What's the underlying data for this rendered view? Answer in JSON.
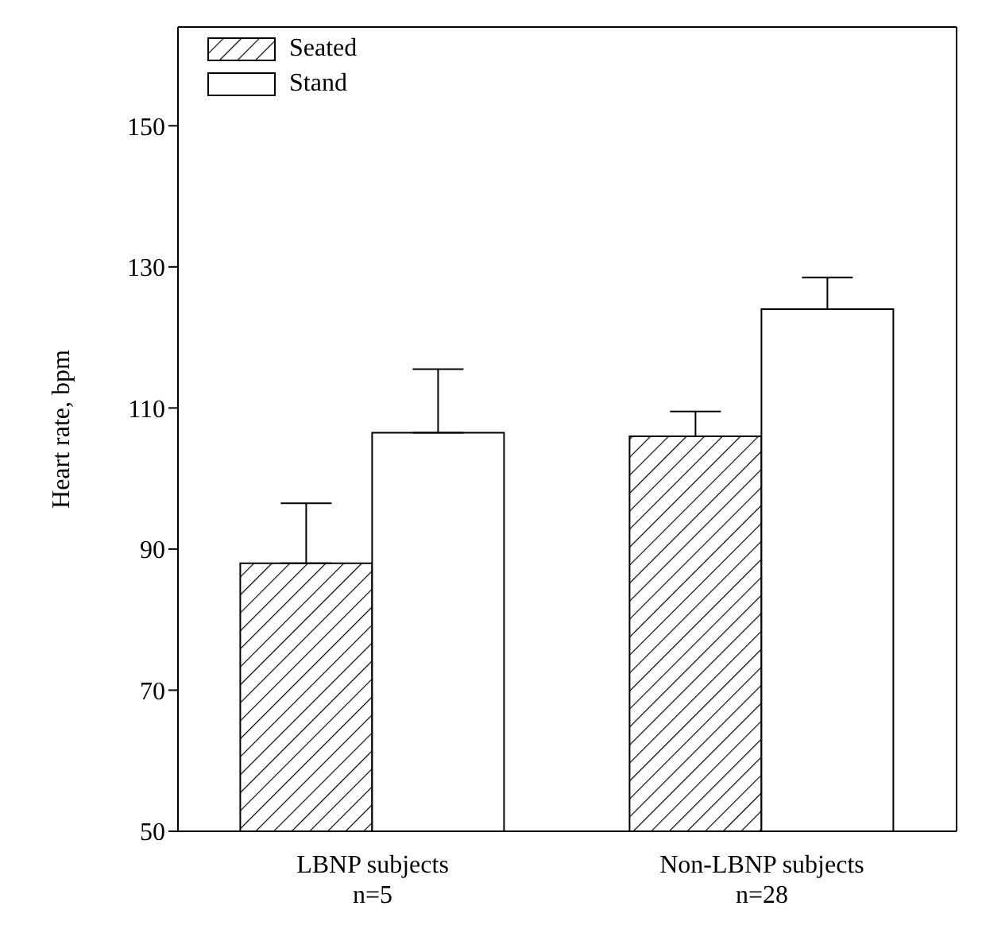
{
  "chart_data": {
    "type": "bar",
    "ylabel": "Heart rate, bpm",
    "categories": [
      "LBNP subjects\nn=5",
      "Non-LBNP subjects\nn=28"
    ],
    "series": [
      {
        "name": "Seated",
        "color": "#000000",
        "values": [
          88,
          106
        ],
        "errors": [
          [
            88,
            96.5
          ],
          [
            106,
            109.5
          ]
        ]
      },
      {
        "name": "Stand",
        "color": "#ffffff",
        "values": [
          106.5,
          124
        ],
        "errors": [
          [
            106.5,
            115.5
          ],
          [
            124,
            128.5
          ]
        ]
      }
    ],
    "ylim": [
      50,
      164
    ],
    "yticks": [
      50,
      70,
      90,
      110,
      130,
      150
    ],
    "legend": "top left"
  }
}
